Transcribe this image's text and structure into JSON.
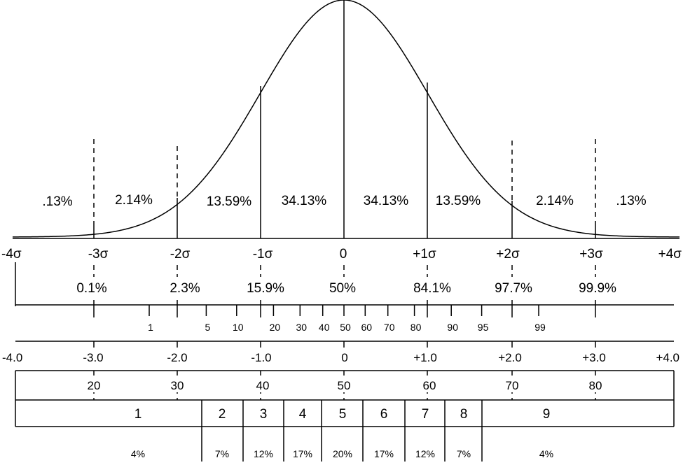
{
  "colors": {
    "ink": "#000000",
    "background": "#ffffff"
  },
  "area_percents": [
    ".13%",
    "2.14%",
    "13.59%",
    "34.13%",
    "34.13%",
    "13.59%",
    "2.14%",
    ".13%"
  ],
  "sigma_labels": [
    "-4σ",
    "-3σ",
    "-2σ",
    "-1σ",
    "0",
    "+1σ",
    "+2σ",
    "+3σ",
    "+4σ"
  ],
  "cumulative_percents": [
    "0.1%",
    "2.3%",
    "15.9%",
    "50%",
    "84.1%",
    "97.7%",
    "99.9%"
  ],
  "percentile_ticks": [
    {
      "label": "1",
      "z": -2.326
    },
    {
      "label": "5",
      "z": -1.645
    },
    {
      "label": "10",
      "z": -1.2816
    },
    {
      "label": "20",
      "z": -0.8416
    },
    {
      "label": "30",
      "z": -0.5244
    },
    {
      "label": "40",
      "z": -0.2533
    },
    {
      "label": "50",
      "z": 0
    },
    {
      "label": "60",
      "z": 0.2533
    },
    {
      "label": "70",
      "z": 0.5244
    },
    {
      "label": "80",
      "z": 0.8416
    },
    {
      "label": "90",
      "z": 1.2816
    },
    {
      "label": "95",
      "z": 1.645
    },
    {
      "label": "99",
      "z": 2.326
    }
  ],
  "z_scores": [
    "-4.0",
    "-3.0",
    "-2.0",
    "-1.0",
    "0",
    "+1.0",
    "+2.0",
    "+3.0",
    "+4.0"
  ],
  "t_scores": [
    "20",
    "30",
    "40",
    "50",
    "60",
    "70",
    "80"
  ],
  "stanines": [
    "1",
    "2",
    "3",
    "4",
    "5",
    "6",
    "7",
    "8",
    "9"
  ],
  "stanine_percents": [
    "4%",
    "7%",
    "12%",
    "17%",
    "20%",
    "17%",
    "12%",
    "7%",
    "4%"
  ]
}
